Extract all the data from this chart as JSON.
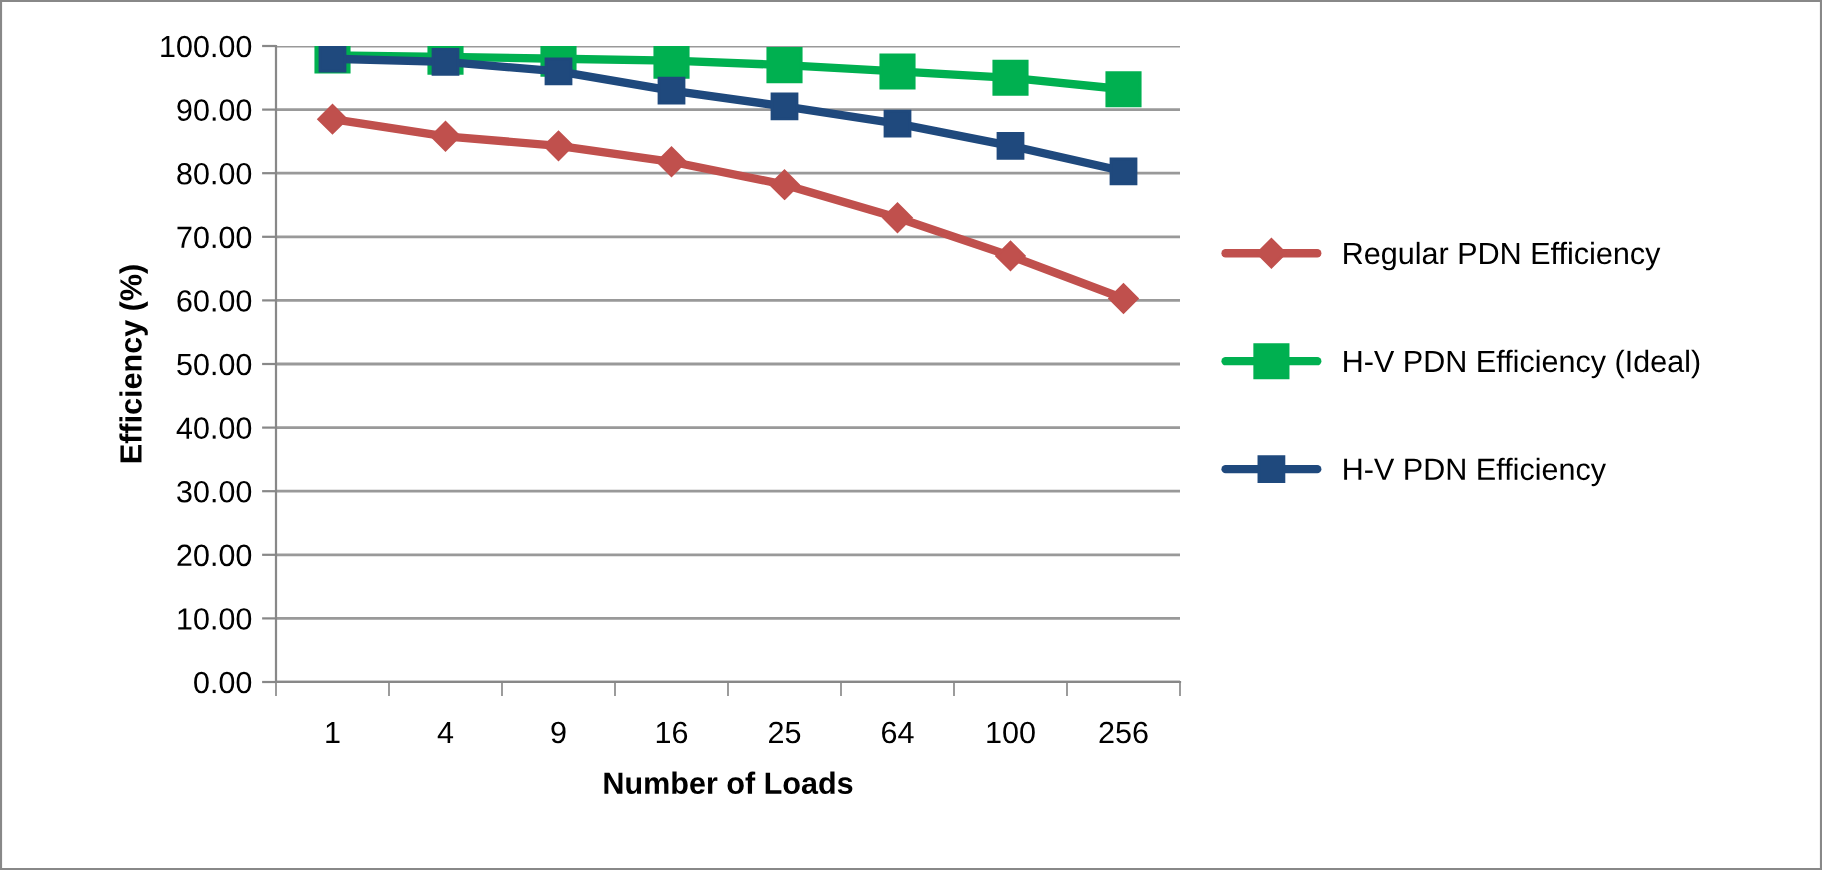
{
  "chart_data": {
    "type": "line",
    "xlabel": "Number of Loads",
    "ylabel": "Efficiency (%)",
    "categories": [
      "1",
      "4",
      "9",
      "16",
      "25",
      "64",
      "100",
      "256"
    ],
    "series": [
      {
        "name": "Regular PDN Efficiency",
        "color": "#c0504d",
        "marker": "diamond",
        "values": [
          88.5,
          85.8,
          84.3,
          81.8,
          78.2,
          73.0,
          67.0,
          60.3
        ]
      },
      {
        "name": "H-V PDN Efficiency (Ideal)",
        "color": "#00b050",
        "marker": "square",
        "values": [
          98.5,
          98.3,
          98.0,
          97.7,
          97.0,
          96.0,
          95.0,
          93.2
        ]
      },
      {
        "name": "H-V PDN Efficiency",
        "color": "#1f497d",
        "marker": "square",
        "values": [
          98.0,
          97.5,
          96.0,
          93.0,
          90.5,
          87.8,
          84.3,
          80.3
        ]
      }
    ],
    "ylim": [
      0,
      100
    ],
    "yticks": [
      {
        "value": 0,
        "label": "0.00"
      },
      {
        "value": 10,
        "label": "10.00"
      },
      {
        "value": 20,
        "label": "20.00"
      },
      {
        "value": 30,
        "label": "30.00"
      },
      {
        "value": 40,
        "label": "40.00"
      },
      {
        "value": 50,
        "label": "50.00"
      },
      {
        "value": 60,
        "label": "60.00"
      },
      {
        "value": 70,
        "label": "70.00"
      },
      {
        "value": 80,
        "label": "80.00"
      },
      {
        "value": 90,
        "label": "90.00"
      },
      {
        "value": 100,
        "label": "100.00"
      }
    ],
    "grid": "y",
    "legend": "right",
    "line_style": "solid"
  }
}
